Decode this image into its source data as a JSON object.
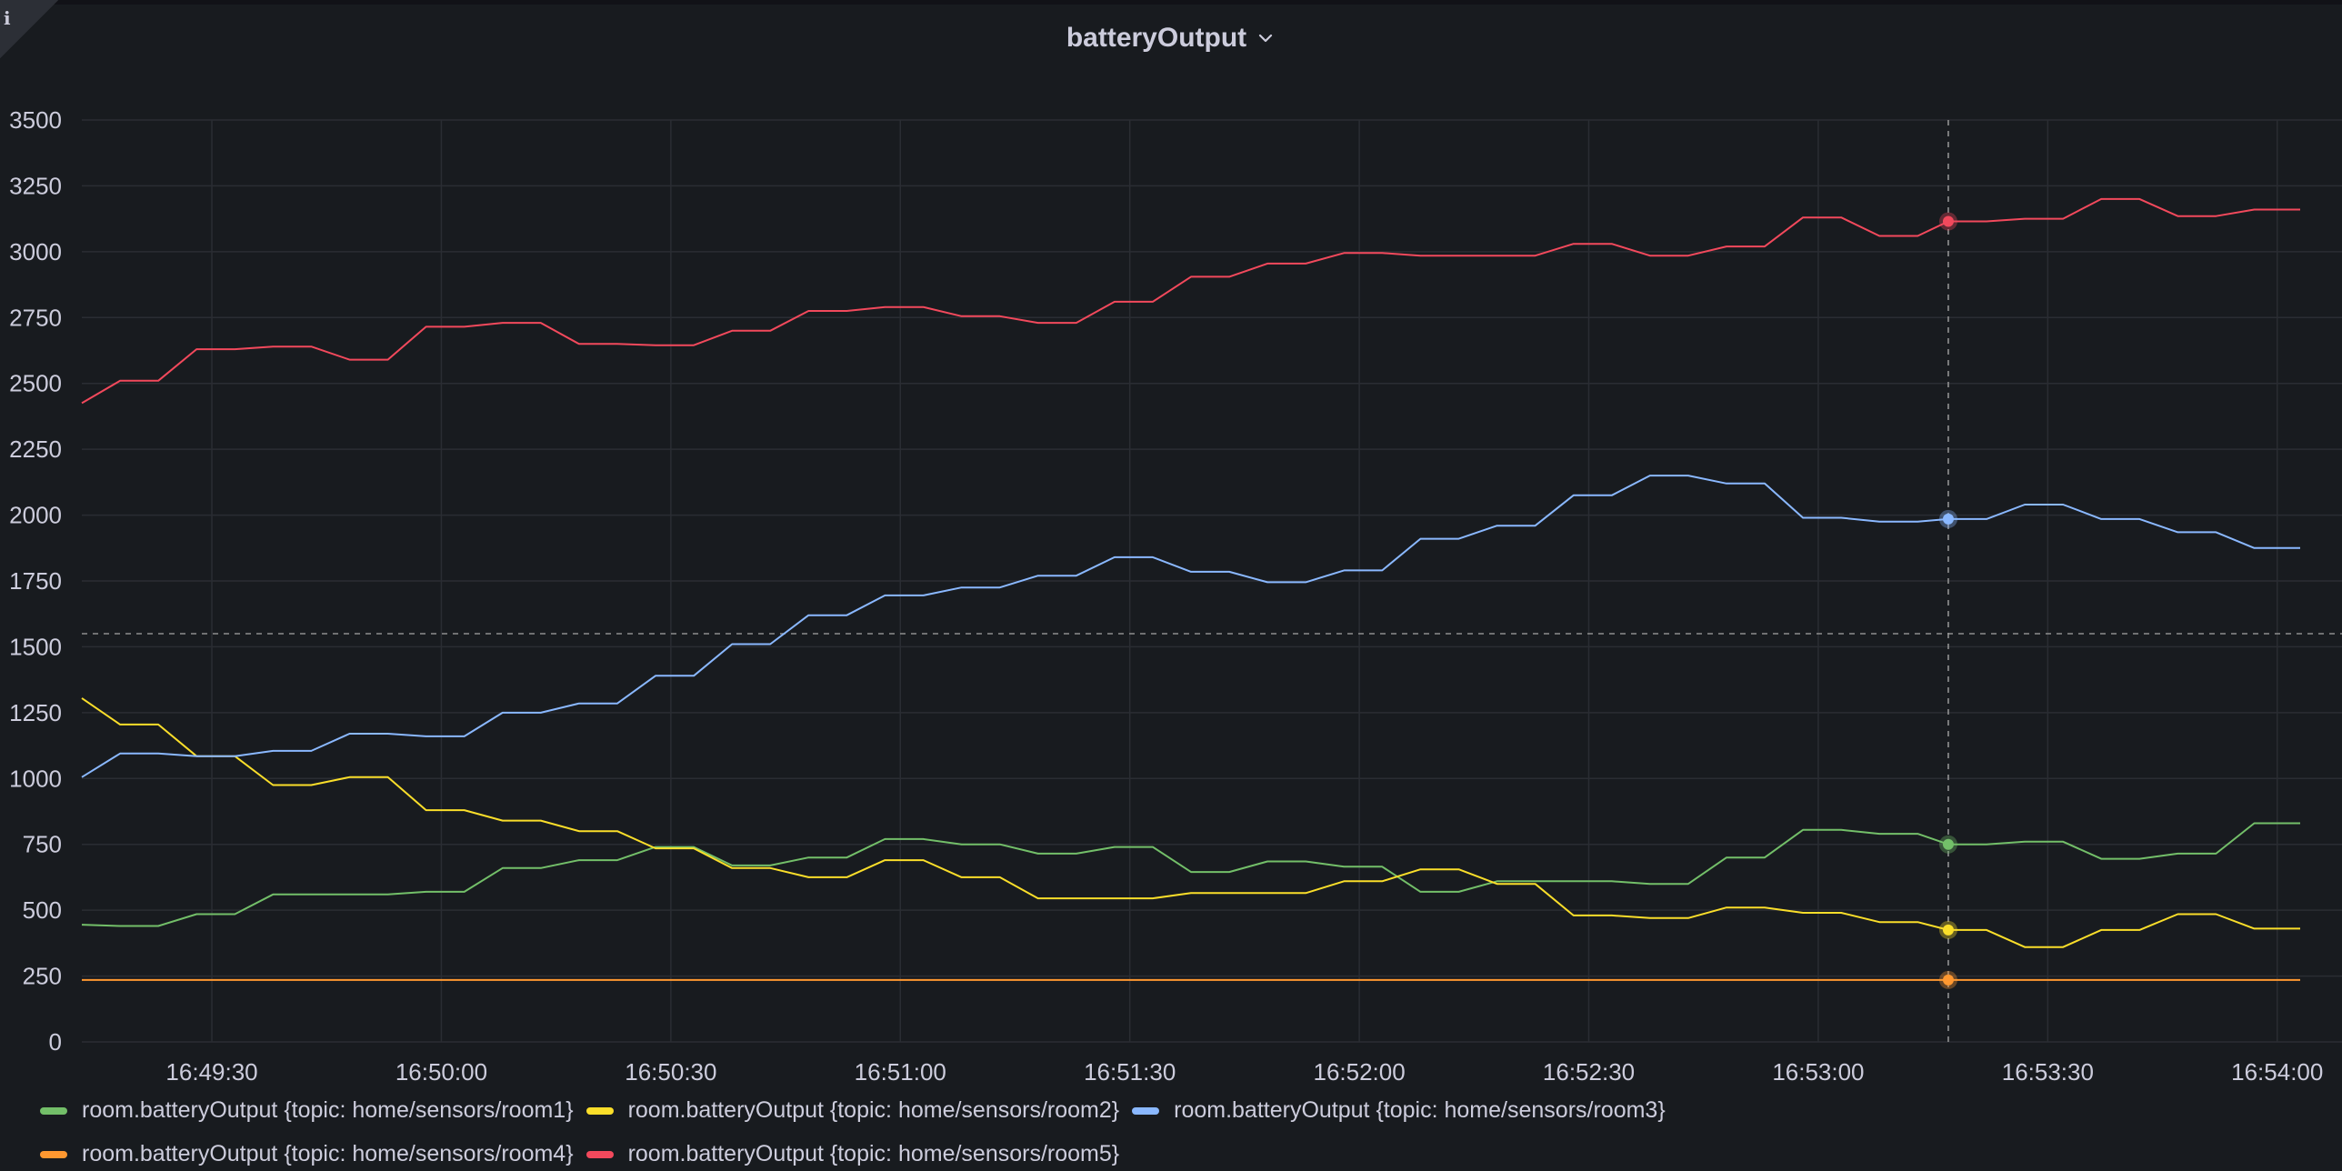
{
  "panel": {
    "title": "batteryOutput",
    "info_icon": "i"
  },
  "colors": {
    "background": "#181b1f",
    "grid": "#2a2d33",
    "text": "#ccccdc",
    "room1": "#73bf69",
    "room2": "#fade2a",
    "room3": "#8ab8ff",
    "room4": "#ff9830",
    "room5": "#f2495c"
  },
  "chart_data": {
    "type": "line",
    "title": "batteryOutput",
    "xlabel": "",
    "ylabel": "",
    "x_axis": "time",
    "x_range": [
      "16:49:13",
      "16:54:03"
    ],
    "x_ticks": [
      "16:49:30",
      "16:50:00",
      "16:50:30",
      "16:51:00",
      "16:51:30",
      "16:52:00",
      "16:52:30",
      "16:53:00",
      "16:53:30",
      "16:54:00"
    ],
    "ylim": [
      0,
      3500
    ],
    "y_ticks": [
      0,
      250,
      500,
      750,
      1000,
      1250,
      1500,
      1750,
      2000,
      2250,
      2500,
      2750,
      3000,
      3250,
      3500
    ],
    "grid": true,
    "legend_placement": "bottom",
    "threshold_value": 1550,
    "crosshair_time": "16:53:17",
    "x": [
      "16:49:13",
      "16:49:18",
      "16:49:23",
      "16:49:28",
      "16:49:33",
      "16:49:38",
      "16:49:43",
      "16:49:48",
      "16:49:53",
      "16:49:58",
      "16:50:03",
      "16:50:08",
      "16:50:13",
      "16:50:18",
      "16:50:23",
      "16:50:28",
      "16:50:33",
      "16:50:38",
      "16:50:43",
      "16:50:48",
      "16:50:53",
      "16:50:58",
      "16:51:03",
      "16:51:08",
      "16:51:13",
      "16:51:18",
      "16:51:23",
      "16:51:28",
      "16:51:33",
      "16:51:38",
      "16:51:43",
      "16:51:48",
      "16:51:53",
      "16:51:58",
      "16:52:03",
      "16:52:08",
      "16:52:13",
      "16:52:18",
      "16:52:23",
      "16:52:28",
      "16:52:33",
      "16:52:38",
      "16:52:43",
      "16:52:48",
      "16:52:53",
      "16:52:58",
      "16:53:03",
      "16:53:08",
      "16:53:13",
      "16:53:17",
      "16:53:22",
      "16:53:27",
      "16:53:32",
      "16:53:37",
      "16:53:42",
      "16:53:47",
      "16:53:52",
      "16:53:57",
      "16:54:03"
    ],
    "series": [
      {
        "name": "room.batteryOutput {topic: home/sensors/room1}",
        "color": "#73bf69",
        "values": [
          445,
          440,
          440,
          485,
          485,
          560,
          560,
          560,
          560,
          570,
          570,
          660,
          660,
          690,
          690,
          740,
          740,
          670,
          670,
          700,
          700,
          770,
          770,
          750,
          750,
          715,
          715,
          740,
          740,
          645,
          645,
          685,
          685,
          665,
          665,
          570,
          570,
          610,
          610,
          610,
          610,
          600,
          600,
          700,
          700,
          805,
          805,
          790,
          790,
          750,
          750,
          760,
          760,
          695,
          695,
          715,
          715,
          830,
          830
        ]
      },
      {
        "name": "room.batteryOutput {topic: home/sensors/room2}",
        "color": "#fade2a",
        "values": [
          1305,
          1205,
          1205,
          1085,
          1085,
          975,
          975,
          1005,
          1005,
          880,
          880,
          840,
          840,
          800,
          800,
          735,
          735,
          660,
          660,
          625,
          625,
          690,
          690,
          625,
          625,
          545,
          545,
          545,
          545,
          565,
          565,
          565,
          565,
          610,
          610,
          655,
          655,
          600,
          600,
          480,
          480,
          470,
          470,
          510,
          510,
          490,
          490,
          455,
          455,
          425,
          425,
          360,
          360,
          425,
          425,
          485,
          485,
          430,
          430
        ]
      },
      {
        "name": "room.batteryOutput {topic: home/sensors/room3}",
        "color": "#8ab8ff",
        "values": [
          1005,
          1095,
          1095,
          1085,
          1085,
          1105,
          1105,
          1170,
          1170,
          1160,
          1160,
          1250,
          1250,
          1285,
          1285,
          1390,
          1390,
          1510,
          1510,
          1620,
          1620,
          1695,
          1695,
          1725,
          1725,
          1770,
          1770,
          1840,
          1840,
          1785,
          1785,
          1745,
          1745,
          1790,
          1790,
          1910,
          1910,
          1960,
          1960,
          2075,
          2075,
          2150,
          2150,
          2120,
          2120,
          1990,
          1990,
          1975,
          1975,
          1985,
          1985,
          2040,
          2040,
          1985,
          1985,
          1935,
          1935,
          1875,
          1875
        ]
      },
      {
        "name": "room.batteryOutput {topic: home/sensors/room4}",
        "color": "#ff9830",
        "values": [
          235,
          235,
          235,
          235,
          235,
          235,
          235,
          235,
          235,
          235,
          235,
          235,
          235,
          235,
          235,
          235,
          235,
          235,
          235,
          235,
          235,
          235,
          235,
          235,
          235,
          235,
          235,
          235,
          235,
          235,
          235,
          235,
          235,
          235,
          235,
          235,
          235,
          235,
          235,
          235,
          235,
          235,
          235,
          235,
          235,
          235,
          235,
          235,
          235,
          235,
          235,
          235,
          235,
          235,
          235,
          235,
          235,
          235,
          235
        ]
      },
      {
        "name": "room.batteryOutput {topic: home/sensors/room5}",
        "color": "#f2495c",
        "values": [
          2425,
          2510,
          2510,
          2630,
          2630,
          2640,
          2640,
          2590,
          2590,
          2715,
          2715,
          2730,
          2730,
          2650,
          2650,
          2645,
          2645,
          2700,
          2700,
          2775,
          2775,
          2790,
          2790,
          2755,
          2755,
          2730,
          2730,
          2810,
          2810,
          2905,
          2905,
          2955,
          2955,
          2995,
          2995,
          2985,
          2985,
          2985,
          2985,
          3030,
          3030,
          2985,
          2985,
          3020,
          3020,
          3130,
          3130,
          3060,
          3060,
          3115,
          3115,
          3125,
          3125,
          3200,
          3200,
          3135,
          3135,
          3160,
          3160
        ]
      }
    ]
  }
}
